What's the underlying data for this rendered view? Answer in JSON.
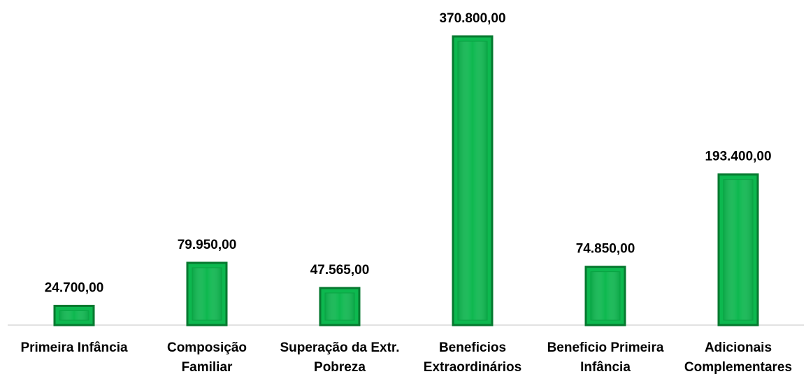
{
  "chart_data": {
    "type": "bar",
    "categories": [
      "Primeira Infância",
      "Composição Familiar",
      "Superação da Extr. Pobreza",
      "Beneficios Extraordinários",
      "Beneficio Primeira Infância",
      "Adicionais Complementares"
    ],
    "values": [
      24700,
      79950,
      47565,
      370800,
      74850,
      193400
    ],
    "value_labels": [
      "24.700,00",
      "79.950,00",
      "47.565,00",
      "370.800,00",
      "74.850,00",
      "193.400,00"
    ],
    "color": "#0db84f",
    "ylim": [
      0,
      400000
    ]
  }
}
